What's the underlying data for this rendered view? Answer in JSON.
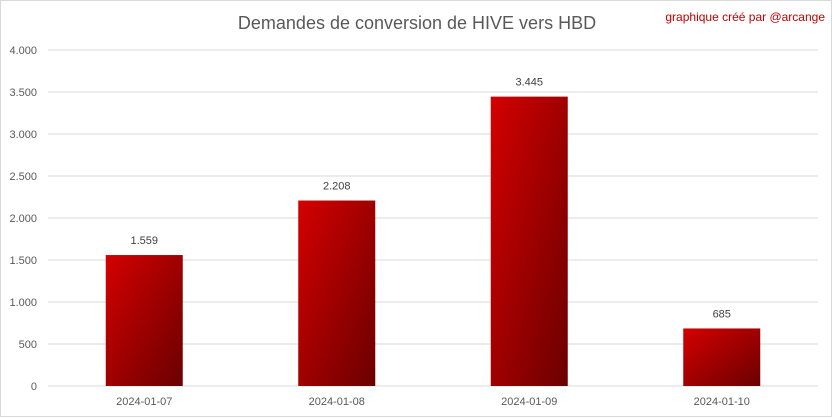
{
  "chart_data": {
    "type": "bar",
    "title": "Demandes de conversion de HIVE vers HBD",
    "annotation": "graphique créé par @arcange",
    "categories": [
      "2024-01-07",
      "2024-01-08",
      "2024-01-09",
      "2024-01-10"
    ],
    "values": [
      1559,
      2208,
      3445,
      685
    ],
    "data_labels": [
      "1.559",
      "2.208",
      "3.445",
      "685"
    ],
    "y_ticks": [
      0,
      500,
      1000,
      1500,
      2000,
      2500,
      3000,
      3500,
      4000
    ],
    "y_tick_labels": [
      "0",
      "500",
      "1.000",
      "1.500",
      "2.000",
      "2.500",
      "3.000",
      "3.500",
      "4.000"
    ],
    "ylim": [
      0,
      4000
    ],
    "grid": true,
    "legend": "none",
    "colors": {
      "bar_light": "#d40000",
      "bar_dark": "#6b0000",
      "grid": "#d9d9d9"
    }
  }
}
